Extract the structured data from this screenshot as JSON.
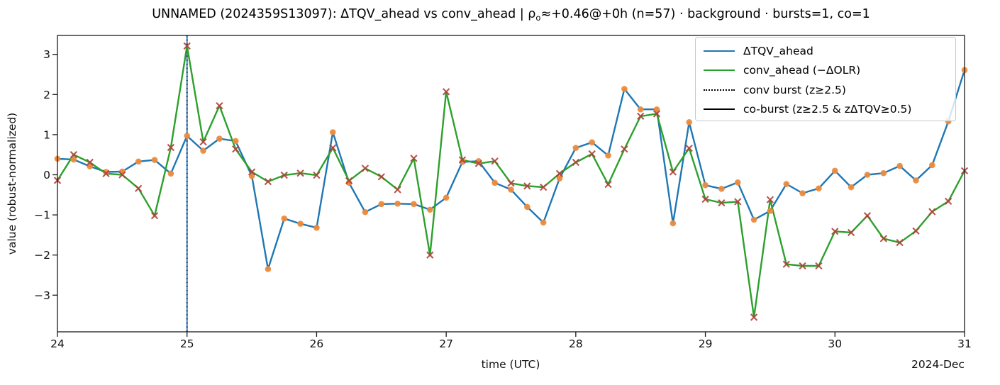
{
  "figure": {
    "title": {
      "pre": "UNNAMED (2024359S13097): ΔTQV_ahead vs conv_ahead | ρ",
      "sub": "o",
      "post": "≈+0.46@+0h (n=57) · background · bursts=1, co=1"
    }
  },
  "chart_data": {
    "type": "line",
    "title": "UNNAMED (2024359S13097): ΔTQV_ahead vs conv_ahead | ρo≈+0.46@+0h (n=57) · background · bursts=1, co=1",
    "xlabel": "time (UTC)",
    "ylabel": "value (robust-normalized)",
    "x_offset_label": "2024-Dec",
    "xlim": [
      24,
      31
    ],
    "ylim": [
      -3.9,
      3.47
    ],
    "grid": false,
    "x_ticks": [
      {
        "v": 24,
        "label": "24"
      },
      {
        "v": 25,
        "label": "25"
      },
      {
        "v": 26,
        "label": "26"
      },
      {
        "v": 27,
        "label": "27"
      },
      {
        "v": 28,
        "label": "28"
      },
      {
        "v": 29,
        "label": "29"
      },
      {
        "v": 30,
        "label": "30"
      },
      {
        "v": 31,
        "label": "31"
      }
    ],
    "y_ticks": [
      {
        "v": 3,
        "label": "3"
      },
      {
        "v": 2,
        "label": "2"
      },
      {
        "v": 1,
        "label": "1"
      },
      {
        "v": 0,
        "label": "0"
      },
      {
        "v": -1,
        "label": "−1"
      },
      {
        "v": -2,
        "label": "−2"
      },
      {
        "v": -3,
        "label": "−3"
      }
    ],
    "x_start_day": 24,
    "x_step_hours": 3,
    "n_points": 57,
    "series": [
      {
        "name": "ΔTQV_ahead",
        "color": "#1f77b4",
        "marker": "circle",
        "marker_color": "#ec8b3d",
        "values": [
          0.4,
          0.38,
          0.21,
          0.07,
          0.08,
          0.33,
          0.37,
          0.03,
          0.97,
          0.6,
          0.9,
          0.84,
          -0.03,
          -2.35,
          -1.09,
          -1.22,
          -1.32,
          1.06,
          -0.2,
          -0.93,
          -0.73,
          -0.72,
          -0.73,
          -0.87,
          -0.57,
          0.32,
          0.34,
          -0.2,
          -0.37,
          -0.8,
          -1.19,
          -0.09,
          0.67,
          0.81,
          0.48,
          2.14,
          1.63,
          1.63,
          -1.21,
          1.31,
          -0.26,
          -0.35,
          -0.19,
          -1.12,
          -0.9,
          -0.23,
          -0.46,
          -0.34,
          0.1,
          -0.31,
          0.0,
          0.04,
          0.22,
          -0.14,
          0.24,
          1.33,
          2.61
        ]
      },
      {
        "name": "conv_ahead (−ΔOLR)",
        "color": "#2ca02c",
        "marker": "x",
        "marker_color": "#ae4138",
        "values": [
          -0.14,
          0.5,
          0.31,
          0.03,
          0.0,
          -0.34,
          -1.02,
          0.68,
          3.21,
          0.82,
          1.72,
          0.64,
          0.07,
          -0.17,
          -0.01,
          0.04,
          -0.01,
          0.67,
          -0.15,
          0.16,
          -0.05,
          -0.37,
          0.41,
          -2.0,
          2.07,
          0.37,
          0.28,
          0.34,
          -0.21,
          -0.28,
          -0.31,
          0.03,
          0.31,
          0.52,
          -0.24,
          0.64,
          1.46,
          1.52,
          0.07,
          0.66,
          -0.61,
          -0.7,
          -0.67,
          -3.55,
          -0.62,
          -2.23,
          -2.27,
          -2.27,
          -1.41,
          -1.44,
          -1.02,
          -1.59,
          -1.69,
          -1.4,
          -0.92,
          -0.66,
          0.1
        ]
      }
    ],
    "event_lines": [
      {
        "name": "co-burst",
        "day": 25,
        "style": "solid",
        "color": "#3b82c4"
      },
      {
        "name": "conv-burst",
        "day": 25,
        "style": "dotted",
        "color": "#000000"
      }
    ],
    "legend": {
      "position": "upper right",
      "items": [
        {
          "label": "ΔTQV_ahead",
          "style": "solid",
          "color": "#1f77b4"
        },
        {
          "label": "conv_ahead (−ΔOLR)",
          "style": "solid",
          "color": "#2ca02c"
        },
        {
          "label": "conv burst (z≥2.5)",
          "style": "dotted",
          "color": "#000000"
        },
        {
          "label": "co-burst (z≥2.5 & zΔTQV≥0.5)",
          "style": "solid",
          "color": "#000000"
        }
      ]
    }
  }
}
